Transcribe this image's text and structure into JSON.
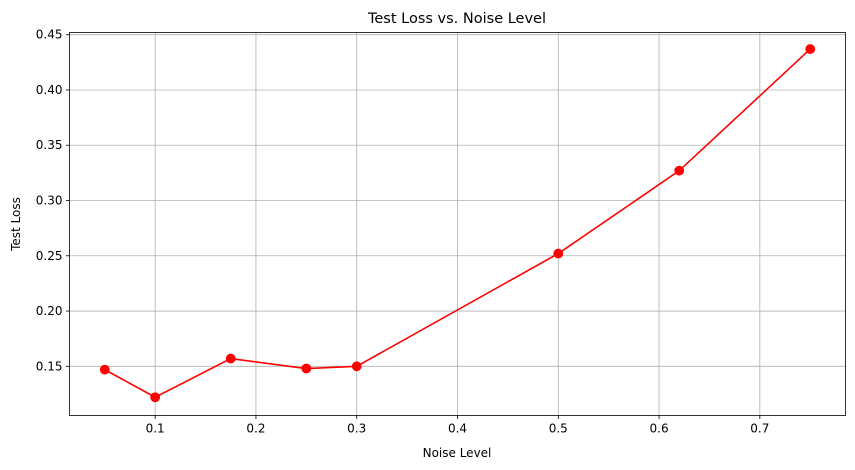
{
  "chart_data": {
    "type": "line",
    "title": "Test Loss vs. Noise Level",
    "xlabel": "Noise Level",
    "ylabel": "Test Loss",
    "xlim": [
      0.015,
      0.785
    ],
    "ylim": [
      0.1055,
      0.452
    ],
    "grid": true,
    "xticks": [
      0.1,
      0.2,
      0.3,
      0.4,
      0.5,
      0.6,
      0.7
    ],
    "xtick_labels": [
      "0.1",
      "0.2",
      "0.3",
      "0.4",
      "0.5",
      "0.6",
      "0.7"
    ],
    "yticks": [
      0.15,
      0.2,
      0.25,
      0.3,
      0.35,
      0.4,
      0.45
    ],
    "ytick_labels": [
      "0.15",
      "0.20",
      "0.25",
      "0.30",
      "0.35",
      "0.40",
      "0.45"
    ],
    "series": [
      {
        "color": "#ff0000",
        "marker": "circle",
        "x": [
          0.05,
          0.1,
          0.175,
          0.25,
          0.3,
          0.5,
          0.62,
          0.75
        ],
        "y": [
          0.147,
          0.122,
          0.157,
          0.148,
          0.15,
          0.252,
          0.327,
          0.437
        ]
      }
    ]
  }
}
